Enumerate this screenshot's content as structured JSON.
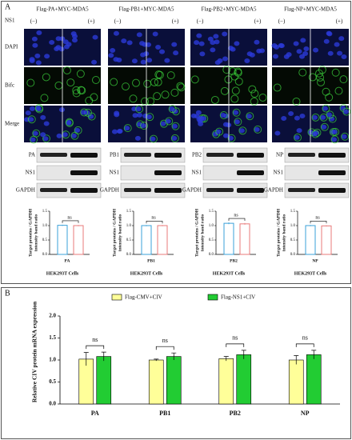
{
  "panel_a": {
    "label": "A",
    "ns1_label": "NS1",
    "minus": "(−)",
    "plus": "(+)",
    "columns": [
      "Flag-PA+MYC-MDA5",
      "Flag-PB1+MYC-MDA5",
      "Flag-PB2+MYC-MDA5",
      "Flag-NP+MYC-MDA5"
    ],
    "rows": [
      "DAPI",
      "Bifc",
      "Merge"
    ],
    "blots": [
      [
        "PA",
        "NS1",
        "GAPDH"
      ],
      [
        "PB1",
        "NS1",
        "GAPDH"
      ],
      [
        "PB2",
        "NS1",
        "GAPDH"
      ],
      [
        "NP",
        "NS1",
        "GAPDH"
      ]
    ]
  },
  "panel_b": {
    "label": "B"
  },
  "chart_data": [
    {
      "type": "bar",
      "ylabel": [
        "Target proteins / GAPDH",
        "intensity band ratio"
      ],
      "xlabel": "HEK293T Cells",
      "categories": [
        "PA"
      ],
      "series": [
        {
          "color": "#3aa0d8",
          "values": [
            1.01
          ],
          "errors": [
            0.02
          ]
        },
        {
          "color": "#e87a7a",
          "values": [
            1.0
          ],
          "errors": [
            0.02
          ]
        }
      ],
      "annotations": [
        "ns"
      ],
      "ylim": [
        0,
        1.5
      ],
      "yticks": [
        {
          "value": 0,
          "label": "0.0"
        },
        {
          "value": 0.5,
          "label": "0.5"
        },
        {
          "value": 1,
          "label": "1.0"
        },
        {
          "value": 1.5,
          "label": "1.5"
        }
      ]
    },
    {
      "type": "bar",
      "ylabel": [
        "Target proteins / GAPDH",
        "intensity band ratio"
      ],
      "xlabel": "HEK293T Cells",
      "categories": [
        "PB1"
      ],
      "series": [
        {
          "color": "#3aa0d8",
          "values": [
            1.0
          ],
          "errors": [
            0.02
          ]
        },
        {
          "color": "#e87a7a",
          "values": [
            1.0
          ],
          "errors": [
            0.02
          ]
        }
      ],
      "annotations": [
        "ns"
      ],
      "ylim": [
        0,
        1.5
      ],
      "yticks": [
        {
          "value": 0,
          "label": "0.0"
        },
        {
          "value": 0.5,
          "label": "0.5"
        },
        {
          "value": 1,
          "label": "1.0"
        },
        {
          "value": 1.5,
          "label": "1.5"
        }
      ]
    },
    {
      "type": "bar",
      "ylabel": [
        "Target proteins / GAPDH",
        "intensity band ratio"
      ],
      "xlabel": "HEK293T Cells",
      "categories": [
        "PB2"
      ],
      "series": [
        {
          "color": "#3aa0d8",
          "values": [
            1.08
          ],
          "errors": [
            0.03
          ]
        },
        {
          "color": "#e87a7a",
          "values": [
            1.06
          ],
          "errors": [
            0.03
          ]
        }
      ],
      "annotations": [
        "ns"
      ],
      "ylim": [
        0,
        1.5
      ],
      "yticks": [
        {
          "value": 0,
          "label": "0.0"
        },
        {
          "value": 0.5,
          "label": "0.5"
        },
        {
          "value": 1,
          "label": "1.0"
        },
        {
          "value": 1.5,
          "label": "1.5"
        }
      ]
    },
    {
      "type": "bar",
      "ylabel": [
        "Target proteins / GAPDH",
        "intensity band ratio"
      ],
      "xlabel": "HEK293T Cells",
      "categories": [
        "NP"
      ],
      "series": [
        {
          "color": "#3aa0d8",
          "values": [
            1.0
          ],
          "errors": [
            0.02
          ]
        },
        {
          "color": "#e87a7a",
          "values": [
            0.99
          ],
          "errors": [
            0.02
          ]
        }
      ],
      "annotations": [
        "ns"
      ],
      "ylim": [
        0,
        1.5
      ],
      "yticks": [
        {
          "value": 0,
          "label": "0.0"
        },
        {
          "value": 0.5,
          "label": "0.5"
        },
        {
          "value": 1,
          "label": "1.0"
        },
        {
          "value": 1.5,
          "label": "1.5"
        }
      ]
    },
    {
      "type": "grouped_bar",
      "ylabel": "Relative CIV protein mRNA expression",
      "categories": [
        "PA",
        "PB1",
        "PB2",
        "NP"
      ],
      "series": [
        {
          "name": "Flag-CMV+CIV",
          "color": "#ffff99",
          "values": [
            1.02,
            1.0,
            1.03,
            1.0
          ],
          "errors": [
            0.15,
            0.02,
            0.05,
            0.1
          ]
        },
        {
          "name": "Flag-NS1+CIV",
          "color": "#22cc33",
          "values": [
            1.08,
            1.08,
            1.12,
            1.12
          ],
          "errors": [
            0.1,
            0.08,
            0.1,
            0.1
          ]
        }
      ],
      "annotations": [
        "ns",
        "ns",
        "ns",
        "ns"
      ],
      "ylim": [
        0,
        2
      ],
      "yticks": [
        {
          "value": 0,
          "label": "0.0"
        },
        {
          "value": 0.5,
          "label": "0.5"
        },
        {
          "value": 1,
          "label": "1.0"
        },
        {
          "value": 1.5,
          "label": "1.5"
        },
        {
          "value": 2,
          "label": "2.0"
        }
      ]
    }
  ]
}
